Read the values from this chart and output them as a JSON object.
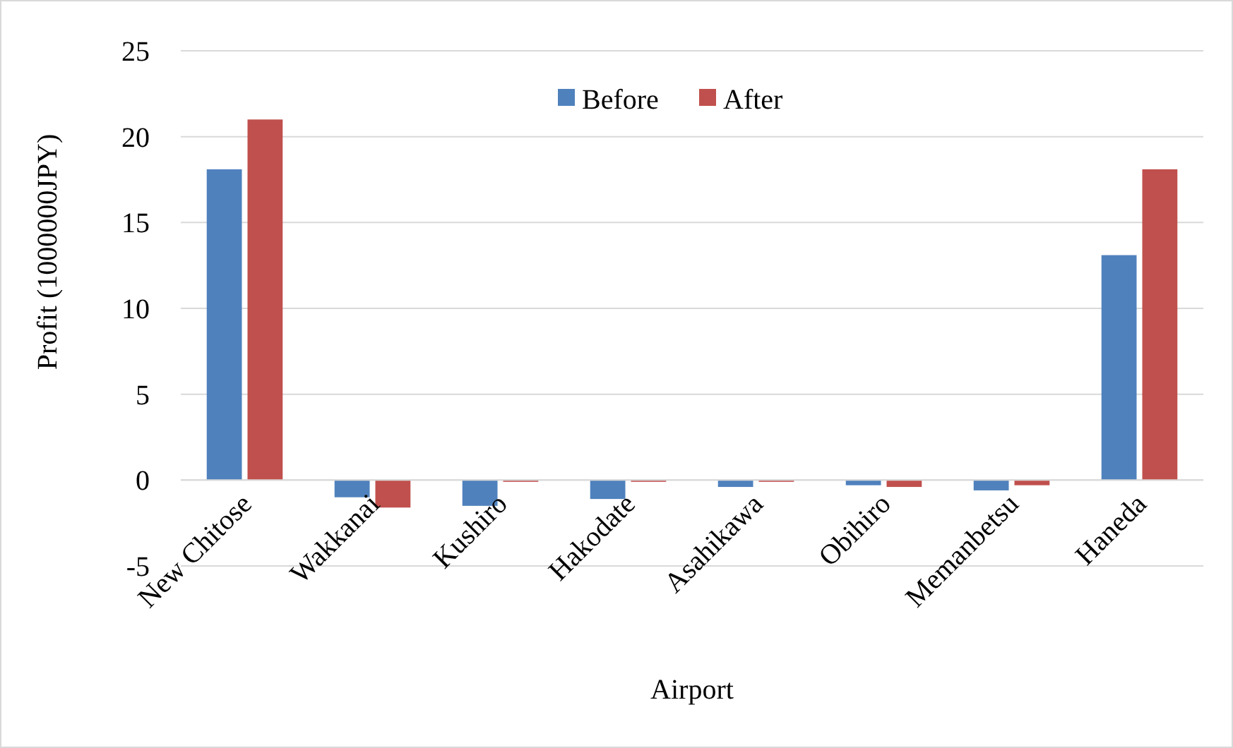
{
  "chart_data": {
    "type": "bar",
    "xlabel": "Airport",
    "ylabel": "Profit (1000000JPY)",
    "categories": [
      "New Chitose",
      "Wakkanai",
      "Kushiro",
      "Hakodate",
      "Asahikawa",
      "Obihiro",
      "Memanbetsu",
      "Haneda"
    ],
    "series": [
      {
        "name": "Before",
        "color": "#4f81bd",
        "values": [
          18.1,
          -1.0,
          -1.5,
          -1.1,
          -0.4,
          -0.3,
          -0.6,
          13.1
        ]
      },
      {
        "name": "After",
        "color": "#c0504d",
        "values": [
          21.0,
          -1.6,
          -0.1,
          -0.1,
          -0.1,
          -0.4,
          -0.3,
          18.1
        ]
      }
    ],
    "ylim": [
      -5,
      25
    ],
    "yticks": [
      -5,
      0,
      5,
      10,
      15,
      20,
      25
    ],
    "grid": "y",
    "legend": "top"
  }
}
